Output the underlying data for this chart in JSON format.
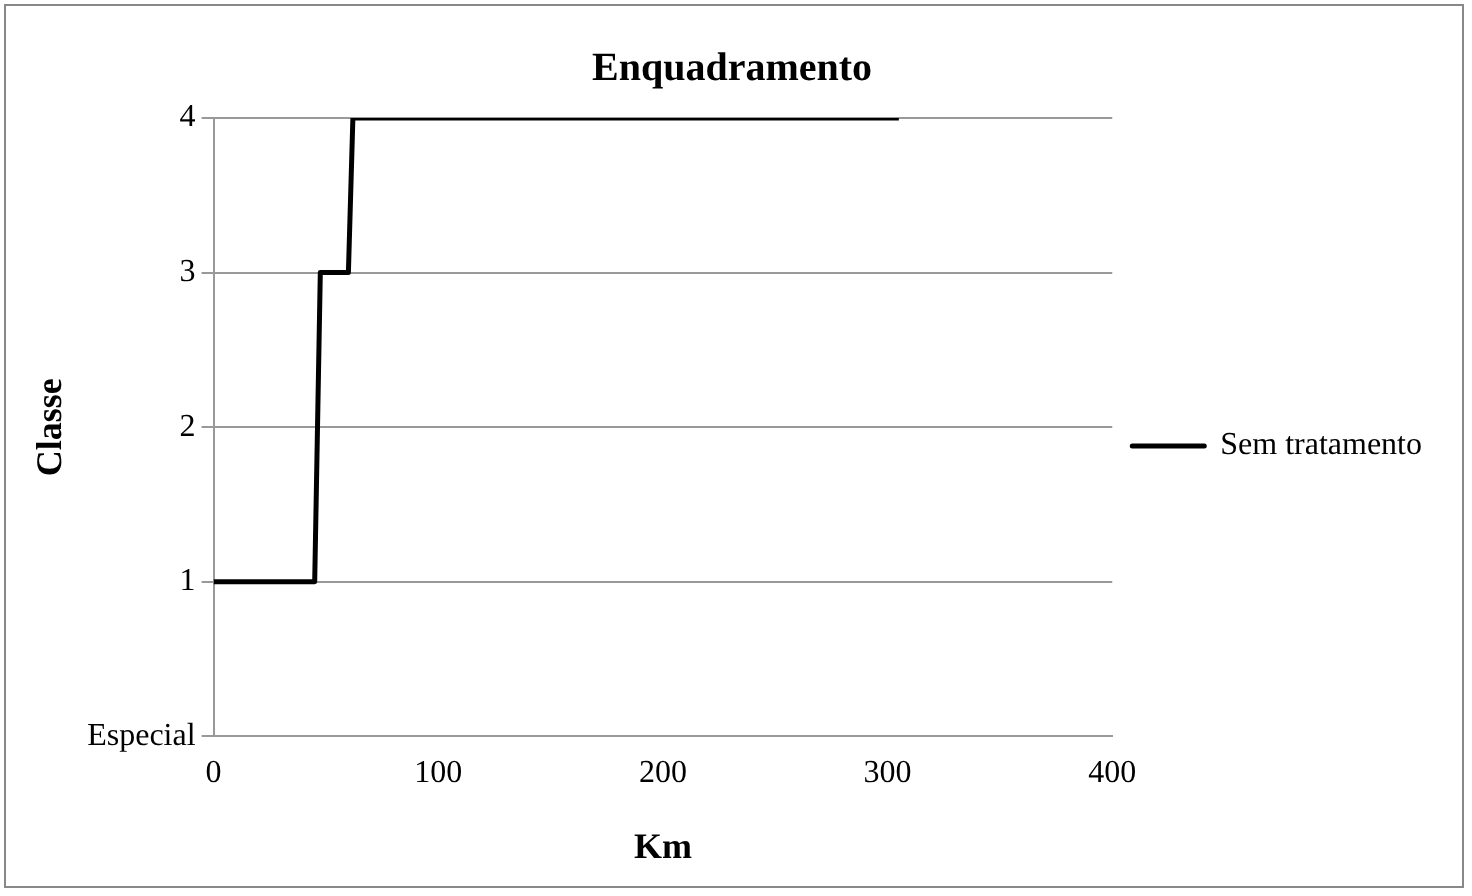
{
  "chart_data": {
    "type": "line",
    "title": "Enquadramento",
    "xlabel": "Km",
    "ylabel": "Classe",
    "x": [
      0,
      45,
      47.5,
      60,
      62,
      305
    ],
    "series": [
      {
        "name": "Sem tratamento",
        "color": "#000000",
        "values": [
          1,
          1,
          3,
          3,
          4,
          4
        ]
      }
    ],
    "xlim": [
      0,
      400
    ],
    "xticks": [
      0,
      100,
      200,
      300,
      400
    ],
    "ylim": [
      0,
      4
    ],
    "yticks": [
      {
        "value": 0,
        "label": "Especial"
      },
      1,
      2,
      3,
      4
    ],
    "grid": "y",
    "legend": "right",
    "marker": "none",
    "line_style": "solid"
  }
}
